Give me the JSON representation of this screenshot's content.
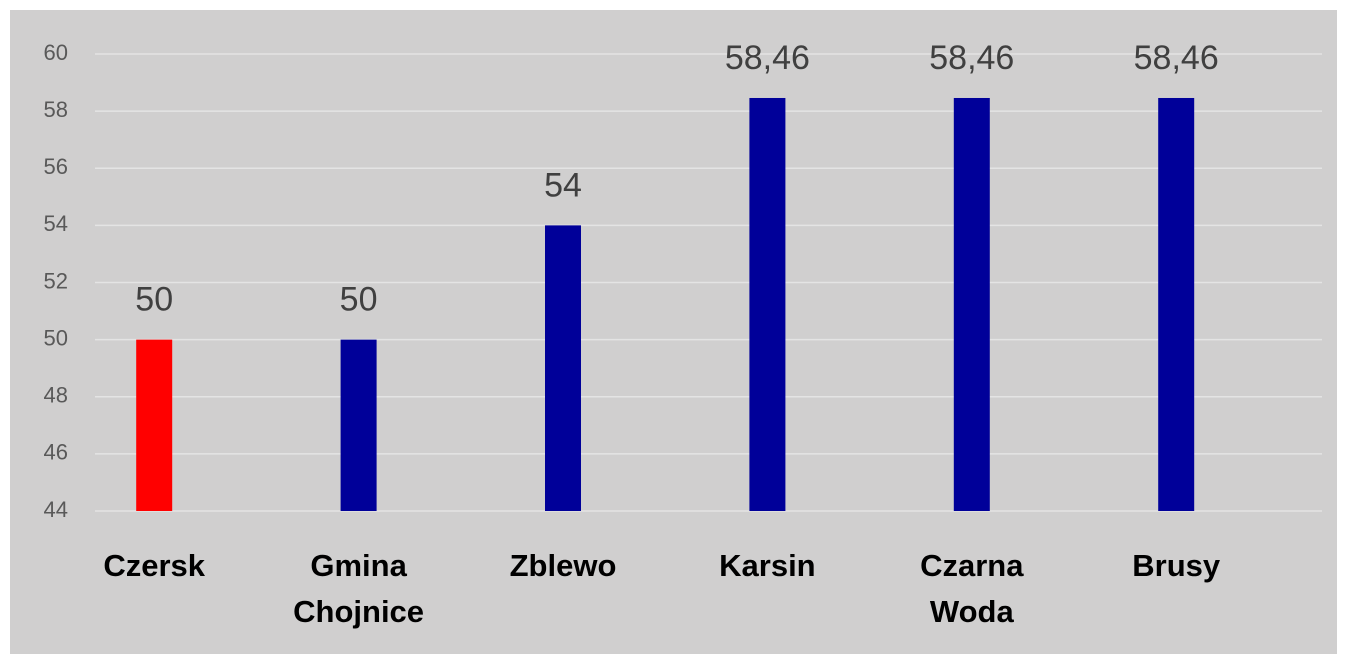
{
  "chart_data": {
    "type": "bar",
    "categories": [
      "Czersk",
      "Gmina Chojnice",
      "Zblewo",
      "Karsin",
      "Czarna Woda",
      "Brusy"
    ],
    "values": [
      50,
      50,
      54,
      58.46,
      58.46,
      58.46
    ],
    "value_labels": [
      "50",
      "50",
      "54",
      "58,46",
      "58,46",
      "58,46"
    ],
    "colors": [
      "#ff0000",
      "#000099",
      "#000099",
      "#000099",
      "#000099",
      "#000099"
    ],
    "ylim": [
      44,
      60
    ],
    "yticks": [
      44,
      46,
      48,
      50,
      52,
      54,
      56,
      58,
      60
    ],
    "grid": true
  }
}
